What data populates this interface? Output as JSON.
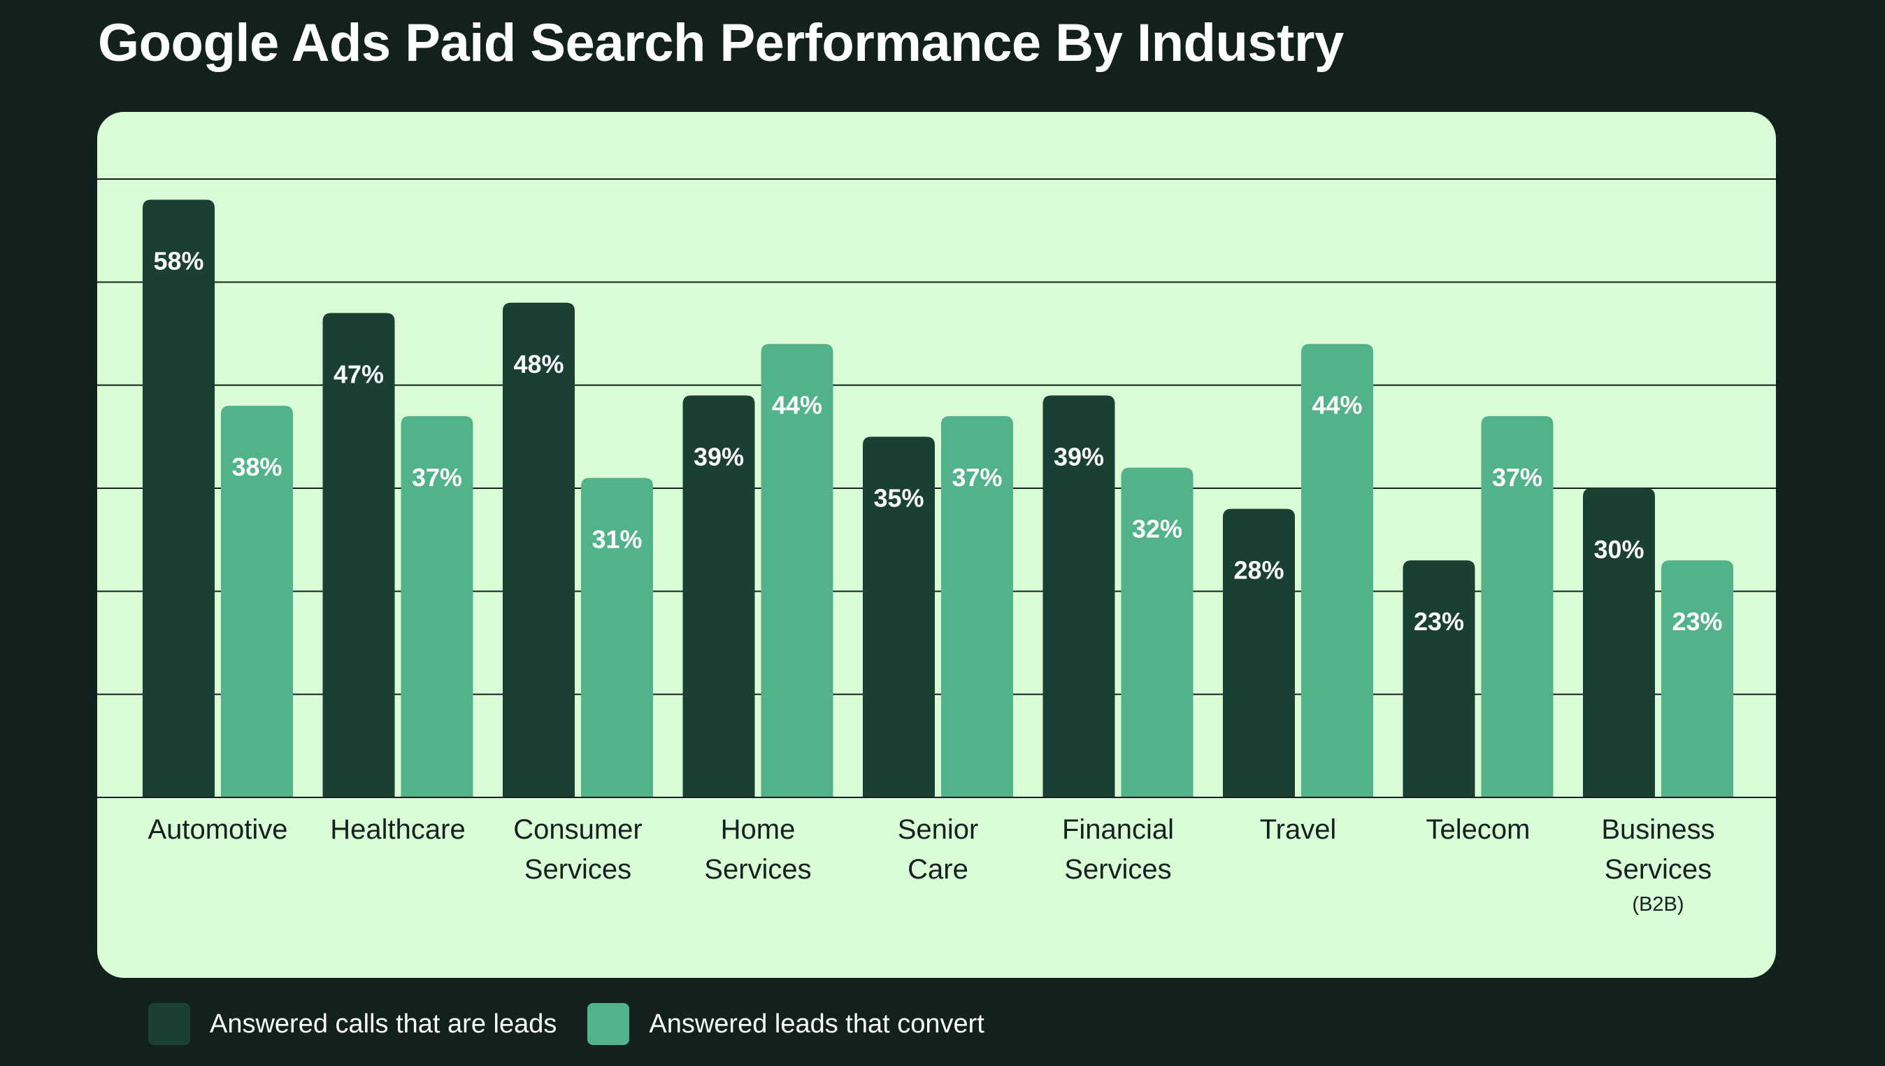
{
  "title": "Google Ads Paid Search Performance By Industry",
  "colors": {
    "background": "#12211e",
    "panel": "#dafcd6",
    "leads": "#1a4033",
    "convert": "#52b38a",
    "gridline": "#12211e",
    "label_text": "#ffffff",
    "axis_text": "#12211e"
  },
  "legend": {
    "leads_label": "Answered calls that are leads",
    "convert_label": "Answered leads that convert"
  },
  "chart_data": {
    "type": "bar",
    "categories": [
      [
        "Automotive"
      ],
      [
        "Healthcare"
      ],
      [
        "Consumer",
        "Services"
      ],
      [
        "Home",
        "Services"
      ],
      [
        "Senior",
        "Care"
      ],
      [
        "Financial",
        "Services"
      ],
      [
        "Travel"
      ],
      [
        "Telecom"
      ],
      [
        "Business",
        "Services",
        "(B2B)"
      ]
    ],
    "series": [
      {
        "name": "Answered calls that are leads",
        "values": [
          58,
          47,
          48,
          39,
          35,
          39,
          28,
          23,
          30
        ]
      },
      {
        "name": "Answered leads that convert",
        "values": [
          38,
          37,
          31,
          44,
          37,
          32,
          44,
          37,
          23
        ]
      }
    ],
    "value_suffix": "%",
    "ylim": [
      0,
      60
    ],
    "grid": true,
    "legend_position": "bottom-left"
  }
}
